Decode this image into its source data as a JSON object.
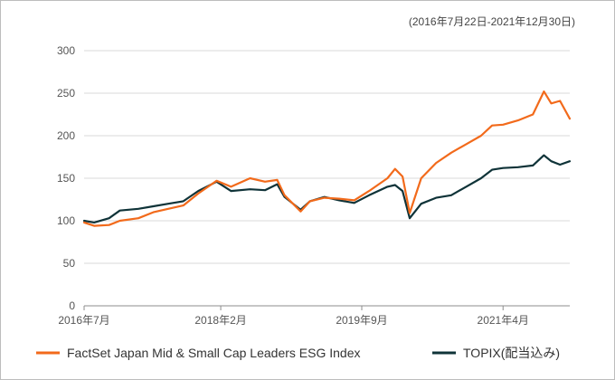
{
  "chart_data": {
    "type": "line",
    "period_label": "(2016年7月22日-2021年12月30日)",
    "xlabel": "",
    "ylabel": "",
    "ylim": [
      0,
      300
    ],
    "yticks": [
      0,
      50,
      100,
      150,
      200,
      250,
      300
    ],
    "xlim": [
      "2016-07-22",
      "2021-12-30"
    ],
    "xticks": [
      {
        "date": "2016-07-22",
        "label": "2016年7月"
      },
      {
        "date": "2018-02-01",
        "label": "2018年2月"
      },
      {
        "date": "2019-09-01",
        "label": "2019年9月"
      },
      {
        "date": "2021-04-01",
        "label": "2021年4月"
      }
    ],
    "grid": true,
    "legend_position": "bottom",
    "series": [
      {
        "name": "FactSet Japan Mid & Small Cap Leaders ESG Index",
        "color": "#f26a1b",
        "points": [
          [
            "2016-07-22",
            98
          ],
          [
            "2016-09-01",
            94
          ],
          [
            "2016-11-01",
            95
          ],
          [
            "2016-12-15",
            100
          ],
          [
            "2017-03-01",
            103
          ],
          [
            "2017-05-01",
            110
          ],
          [
            "2017-07-01",
            114
          ],
          [
            "2017-09-01",
            118
          ],
          [
            "2017-11-01",
            132
          ],
          [
            "2018-01-15",
            147
          ],
          [
            "2018-03-15",
            140
          ],
          [
            "2018-06-01",
            150
          ],
          [
            "2018-08-01",
            146
          ],
          [
            "2018-09-20",
            148
          ],
          [
            "2018-10-20",
            130
          ],
          [
            "2018-12-25",
            111
          ],
          [
            "2019-02-01",
            123
          ],
          [
            "2019-04-01",
            127
          ],
          [
            "2019-06-01",
            126
          ],
          [
            "2019-08-01",
            124
          ],
          [
            "2019-10-01",
            135
          ],
          [
            "2019-12-15",
            150
          ],
          [
            "2020-01-15",
            161
          ],
          [
            "2020-02-15",
            152
          ],
          [
            "2020-03-15",
            109
          ],
          [
            "2020-05-01",
            150
          ],
          [
            "2020-07-01",
            168
          ],
          [
            "2020-09-01",
            180
          ],
          [
            "2020-11-01",
            190
          ],
          [
            "2021-01-01",
            200
          ],
          [
            "2021-02-15",
            212
          ],
          [
            "2021-04-01",
            213
          ],
          [
            "2021-06-01",
            218
          ],
          [
            "2021-08-01",
            225
          ],
          [
            "2021-09-15",
            252
          ],
          [
            "2021-10-15",
            238
          ],
          [
            "2021-11-20",
            241
          ],
          [
            "2021-12-30",
            220
          ]
        ]
      },
      {
        "name": "TOPIX(配当込み)",
        "color": "#0f3338",
        "points": [
          [
            "2016-07-22",
            100
          ],
          [
            "2016-09-01",
            98
          ],
          [
            "2016-11-01",
            103
          ],
          [
            "2016-12-15",
            112
          ],
          [
            "2017-03-01",
            114
          ],
          [
            "2017-05-01",
            117
          ],
          [
            "2017-07-01",
            120
          ],
          [
            "2017-09-01",
            123
          ],
          [
            "2017-11-01",
            135
          ],
          [
            "2018-01-15",
            146
          ],
          [
            "2018-03-15",
            135
          ],
          [
            "2018-06-01",
            137
          ],
          [
            "2018-08-01",
            136
          ],
          [
            "2018-09-20",
            143
          ],
          [
            "2018-10-20",
            128
          ],
          [
            "2018-12-25",
            113
          ],
          [
            "2019-02-01",
            123
          ],
          [
            "2019-04-01",
            128
          ],
          [
            "2019-06-01",
            124
          ],
          [
            "2019-08-01",
            121
          ],
          [
            "2019-10-01",
            130
          ],
          [
            "2019-12-15",
            140
          ],
          [
            "2020-01-15",
            142
          ],
          [
            "2020-02-15",
            135
          ],
          [
            "2020-03-15",
            103
          ],
          [
            "2020-05-01",
            120
          ],
          [
            "2020-07-01",
            127
          ],
          [
            "2020-09-01",
            130
          ],
          [
            "2020-11-01",
            140
          ],
          [
            "2021-01-01",
            150
          ],
          [
            "2021-02-15",
            160
          ],
          [
            "2021-04-01",
            162
          ],
          [
            "2021-06-01",
            163
          ],
          [
            "2021-08-01",
            165
          ],
          [
            "2021-09-15",
            177
          ],
          [
            "2021-10-15",
            170
          ],
          [
            "2021-11-20",
            166
          ],
          [
            "2021-12-30",
            170
          ]
        ]
      }
    ]
  }
}
